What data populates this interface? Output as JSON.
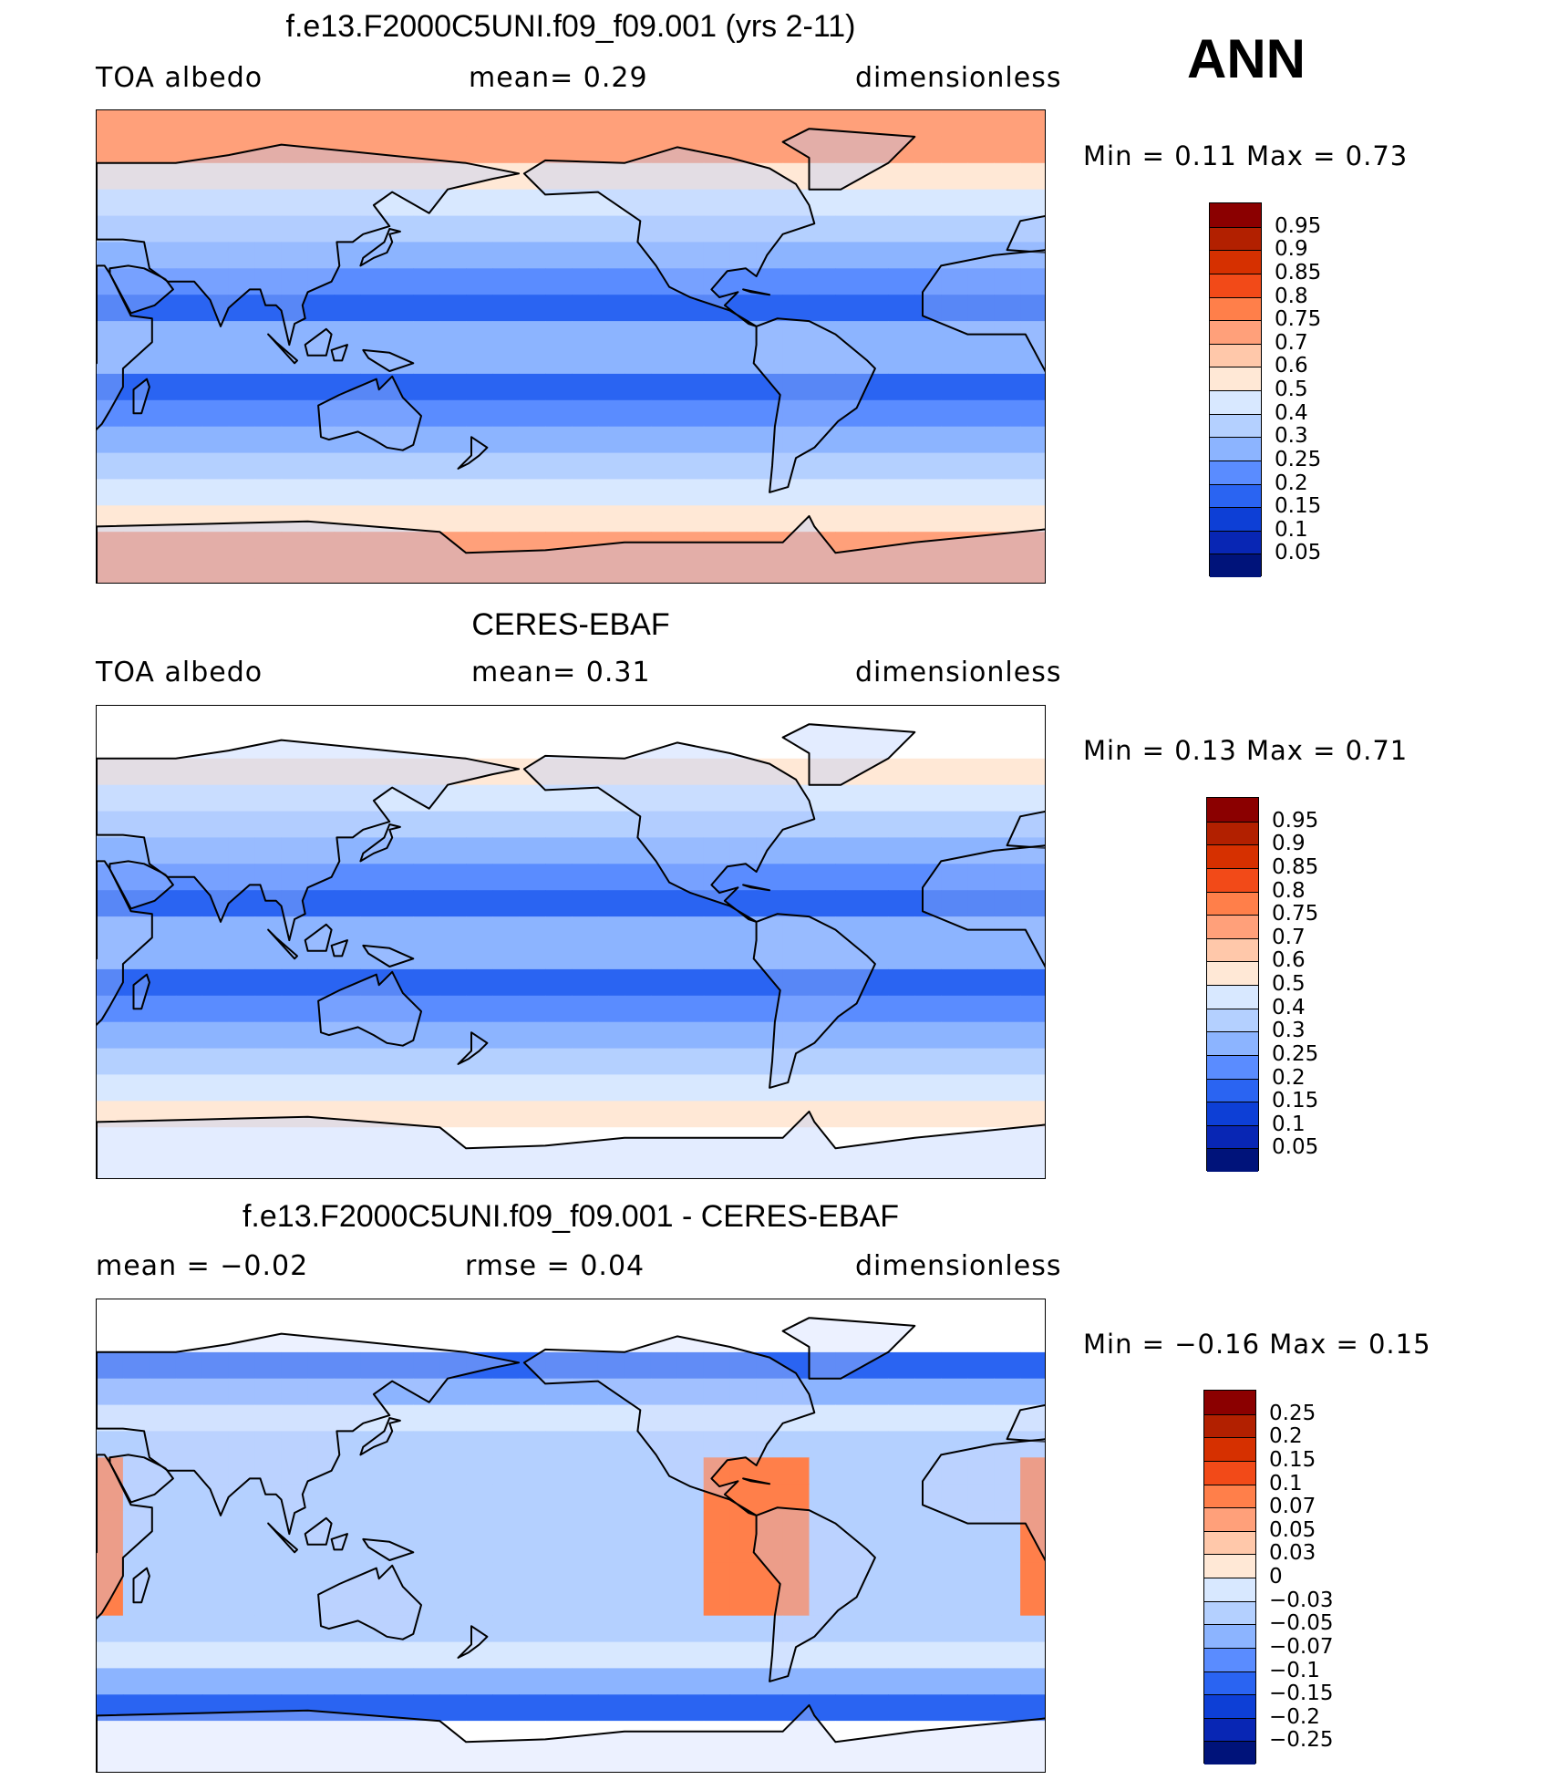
{
  "season": "ANN",
  "panels": [
    {
      "title": "f.e13.F2000C5UNI.f09_f09.001 (yrs 2-11)",
      "left": "TOA  albedo",
      "center": "mean=     0.29",
      "right": "dimensionless",
      "minmax": "Min  =      0.11  Max  =      0.73",
      "colorbar": {
        "labels": [
          "0.95",
          "0.9",
          "0.85",
          "0.8",
          "0.75",
          "0.7",
          "0.6",
          "0.5",
          "0.4",
          "0.3",
          "0.25",
          "0.2",
          "0.15",
          "0.1",
          "0.05"
        ],
        "colors": [
          "#8b0000",
          "#b22000",
          "#d63000",
          "#f24a18",
          "#ff7f4a",
          "#ffa07a",
          "#ffc8aa",
          "#ffe8d6",
          "#d8e8ff",
          "#b4d0ff",
          "#8cb4ff",
          "#5a8cff",
          "#2a64f2",
          "#0d3fd6",
          "#0826b4",
          "#00137a"
        ]
      },
      "map_scheme": "model"
    },
    {
      "title": "CERES-EBAF",
      "left": "TOA  albedo",
      "center": "mean=     0.31",
      "right": "dimensionless",
      "minmax": "Min  =      0.13  Max  =      0.71",
      "colorbar": {
        "labels": [
          "0.95",
          "0.9",
          "0.85",
          "0.8",
          "0.75",
          "0.7",
          "0.6",
          "0.5",
          "0.4",
          "0.3",
          "0.25",
          "0.2",
          "0.15",
          "0.1",
          "0.05"
        ],
        "colors": [
          "#8b0000",
          "#b22000",
          "#d63000",
          "#f24a18",
          "#ff7f4a",
          "#ffa07a",
          "#ffc8aa",
          "#ffe8d6",
          "#d8e8ff",
          "#b4d0ff",
          "#8cb4ff",
          "#5a8cff",
          "#2a64f2",
          "#0d3fd6",
          "#0826b4",
          "#00137a"
        ]
      },
      "map_scheme": "obs"
    },
    {
      "title": "f.e13.F2000C5UNI.f09_f09.001 - CERES-EBAF",
      "left": "mean  =    −0.02",
      "center": "rmse  =      0.04",
      "right": "dimensionless",
      "minmax": "Min  =    −0.16  Max  =      0.15",
      "colorbar": {
        "labels": [
          "0.25",
          "0.2",
          "0.15",
          "0.1",
          "0.07",
          "0.05",
          "0.03",
          "0",
          "−0.03",
          "−0.05",
          "−0.07",
          "−0.1",
          "−0.15",
          "−0.2",
          "−0.25"
        ],
        "colors": [
          "#8b0000",
          "#b22000",
          "#d63000",
          "#f24a18",
          "#ff7f4a",
          "#ffa07a",
          "#ffc8aa",
          "#ffe8d6",
          "#d8e8ff",
          "#b4d0ff",
          "#8cb4ff",
          "#5a8cff",
          "#2a64f2",
          "#0d3fd6",
          "#0826b4",
          "#00137a"
        ]
      },
      "map_scheme": "diff"
    }
  ]
}
